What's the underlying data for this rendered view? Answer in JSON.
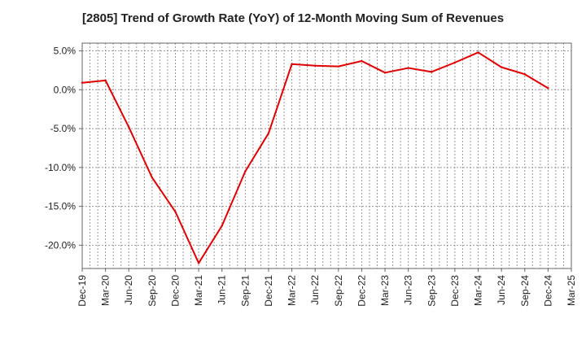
{
  "chart_data": {
    "type": "line",
    "title": "[2805]  Trend of Growth Rate (YoY) of 12-Month Moving Sum of Revenues",
    "xlabel": "",
    "ylabel": "",
    "ylim": [
      -23,
      6
    ],
    "y_ticks": [
      5,
      0,
      -5,
      -10,
      -15,
      -20
    ],
    "y_tick_labels": [
      "5.0%",
      "0.0%",
      "-5.0%",
      "-10.0%",
      "-15.0%",
      "-20.0%"
    ],
    "x_tick_labels": [
      "Dec-19",
      "Mar-20",
      "Jun-20",
      "Sep-20",
      "Dec-20",
      "Mar-21",
      "Jun-21",
      "Sep-21",
      "Dec-21",
      "Mar-22",
      "Jun-22",
      "Sep-22",
      "Dec-22",
      "Mar-23",
      "Jun-23",
      "Sep-23",
      "Dec-23",
      "Mar-24",
      "Jun-24",
      "Sep-24",
      "Dec-24",
      "Mar-25"
    ],
    "grid": true,
    "series": [
      {
        "color": "#e00000",
        "x": [
          "Dec-19",
          "Mar-20",
          "Jun-20",
          "Sep-20",
          "Dec-20",
          "Mar-21",
          "Jun-21",
          "Sep-21",
          "Dec-21",
          "Mar-22",
          "Jun-22",
          "Sep-22",
          "Dec-22",
          "Mar-23",
          "Jun-23",
          "Sep-23",
          "Dec-23",
          "Mar-24",
          "Jun-24",
          "Sep-24",
          "Dec-24"
        ],
        "values": [
          0.9,
          1.2,
          -4.8,
          -11.3,
          -15.7,
          -22.3,
          -17.5,
          -10.5,
          -5.6,
          3.3,
          3.1,
          3.0,
          3.7,
          2.2,
          2.8,
          2.3,
          3.5,
          4.8,
          2.9,
          2.0,
          0.2
        ]
      }
    ]
  }
}
